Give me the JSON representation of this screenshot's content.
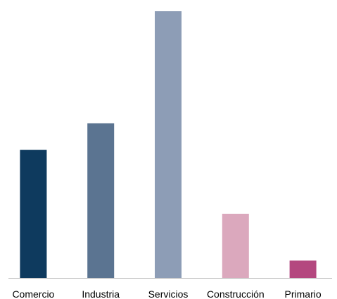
{
  "chart_data": {
    "type": "bar",
    "title": "",
    "xlabel": "",
    "ylabel": "",
    "categories": [
      "Comercio",
      "Industria",
      "Servicios",
      "Construcción",
      "Primario"
    ],
    "values": [
      48,
      58,
      100,
      24,
      6.5
    ],
    "colors": [
      "#0e3a5e",
      "#5b7491",
      "#8d9db6",
      "#dba8bd",
      "#b4487f"
    ],
    "ylim": [
      0,
      100
    ],
    "grid": false,
    "legend": "none",
    "baseline_color": "#bfbfbf"
  }
}
